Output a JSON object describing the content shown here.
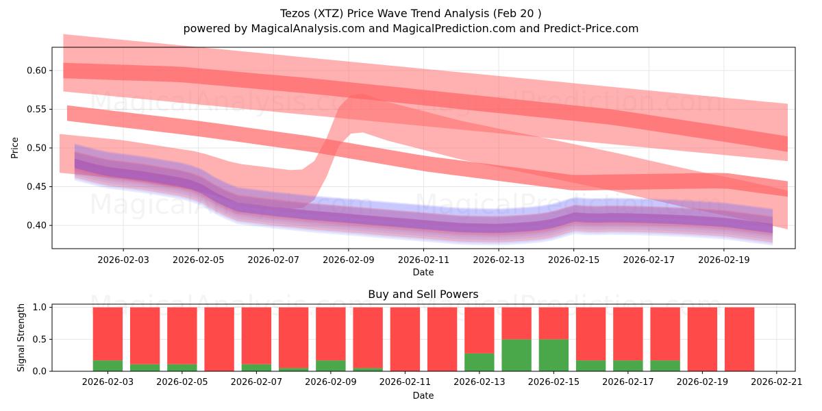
{
  "header": {
    "title": "Tezos (XTZ) Price Wave Trend Analysis (Feb 20 )",
    "subtitle": "powered by MagicalAnalysis.com and MagicalPrediction.com and Predict-Price.com"
  },
  "watermarks": [
    "MagicalAnalysis.com",
    "MagicalPrediction.com"
  ],
  "colors": {
    "sell": "#ff4a4a",
    "buy": "#4aa84a",
    "red_band": "#ff6464",
    "blue_band": "#6a6aff",
    "grid": "#e6e6e6"
  },
  "chart_data": [
    {
      "type": "area",
      "title": "",
      "xlabel": "Date",
      "ylabel": "Price",
      "xlim": [
        -1.9,
        17.9
      ],
      "ylim": [
        0.37,
        0.63
      ],
      "grid": true,
      "x_ticks": [
        {
          "x": 0,
          "label": "2026-02-03"
        },
        {
          "x": 2,
          "label": "2026-02-05"
        },
        {
          "x": 4,
          "label": "2026-02-07"
        },
        {
          "x": 6,
          "label": "2026-02-09"
        },
        {
          "x": 8,
          "label": "2026-02-11"
        },
        {
          "x": 10,
          "label": "2026-02-13"
        },
        {
          "x": 12,
          "label": "2026-02-15"
        },
        {
          "x": 14,
          "label": "2026-02-17"
        },
        {
          "x": 16,
          "label": "2026-02-19"
        }
      ],
      "y_ticks": [
        {
          "y": 0.4,
          "label": "0.40"
        },
        {
          "y": 0.45,
          "label": "0.45"
        },
        {
          "y": 0.5,
          "label": "0.50"
        },
        {
          "y": 0.55,
          "label": "0.55"
        },
        {
          "y": 0.6,
          "label": "0.60"
        }
      ],
      "red_trend_bands": [
        {
          "name": "upper trend wide",
          "x": [
            -1.6,
            17.7
          ],
          "center": [
            0.61,
            0.52
          ],
          "half_width": 0.037,
          "opacity": 0.5
        },
        {
          "name": "upper trend",
          "x": [
            -1.6,
            1.5,
            5,
            9,
            13,
            16,
            17.7
          ],
          "center": [
            0.6,
            0.595,
            0.58,
            0.56,
            0.54,
            0.518,
            0.505
          ],
          "half_width": 0.01,
          "opacity": 0.7
        },
        {
          "name": "lower trend",
          "x": [
            -1.5,
            2,
            5,
            8,
            12,
            16,
            17.7
          ],
          "center": [
            0.545,
            0.525,
            0.505,
            0.48,
            0.455,
            0.458,
            0.447
          ],
          "half_width": 0.01,
          "opacity": 0.7
        },
        {
          "name": "curved trend",
          "x": [
            -1.7,
            0,
            2,
            3,
            4.7,
            5.2,
            5.8,
            6.2,
            7,
            9,
            11,
            13,
            15,
            16.8,
            17.7
          ],
          "center": [
            0.493,
            0.485,
            0.47,
            0.455,
            0.445,
            0.462,
            0.535,
            0.548,
            0.535,
            0.51,
            0.49,
            0.47,
            0.448,
            0.43,
            0.42
          ],
          "half_width": 0.025,
          "opacity": 0.5
        }
      ],
      "price_x": [
        -1.3,
        -0.5,
        0.5,
        1.5,
        2,
        2.5,
        3,
        4,
        5,
        6,
        7,
        8,
        9,
        10,
        11,
        11.5,
        12,
        12.5,
        13,
        14,
        15,
        16,
        17.3
      ],
      "price_center": [
        0.48,
        0.47,
        0.464,
        0.456,
        0.45,
        0.435,
        0.424,
        0.418,
        0.413,
        0.409,
        0.405,
        0.401,
        0.397,
        0.396,
        0.399,
        0.403,
        0.411,
        0.409,
        0.41,
        0.409,
        0.407,
        0.404,
        0.396
      ],
      "blue_band_offsets": [
        0.014,
        0.01,
        0.006,
        0.003,
        0.0,
        -0.004,
        -0.008
      ],
      "red_wave_offsets": [
        0.008,
        0.004,
        -0.002,
        -0.006,
        -0.01
      ],
      "end_dip": {
        "x": 2.8,
        "center": 0.41
      }
    },
    {
      "type": "bar",
      "title": "Buy and Sell Powers",
      "xlabel": "Date",
      "ylabel": "Signal Strength",
      "xlim": [
        -1.5,
        18.5
      ],
      "ylim": [
        0,
        1.05
      ],
      "grid": true,
      "x_ticks": [
        {
          "x": 0,
          "label": "2026-02-03"
        },
        {
          "x": 2,
          "label": "2026-02-05"
        },
        {
          "x": 4,
          "label": "2026-02-07"
        },
        {
          "x": 6,
          "label": "2026-02-09"
        },
        {
          "x": 8,
          "label": "2026-02-11"
        },
        {
          "x": 10,
          "label": "2026-02-13"
        },
        {
          "x": 12,
          "label": "2026-02-15"
        },
        {
          "x": 14,
          "label": "2026-02-17"
        },
        {
          "x": 16,
          "label": "2026-02-19"
        },
        {
          "x": 18,
          "label": "2026-02-21"
        }
      ],
      "y_ticks": [
        {
          "y": 0.0,
          "label": "0.0"
        },
        {
          "y": 0.5,
          "label": "0.5"
        },
        {
          "y": 1.0,
          "label": "1.0"
        }
      ],
      "categories": [
        "2026-02-03",
        "2026-02-04",
        "2026-02-05",
        "2026-02-06",
        "2026-02-07",
        "2026-02-08",
        "2026-02-09",
        "2026-02-10",
        "2026-02-11",
        "2026-02-12",
        "2026-02-13",
        "2026-02-14",
        "2026-02-15",
        "2026-02-16",
        "2026-02-17",
        "2026-02-18",
        "2026-02-19",
        "2026-02-20"
      ],
      "series": [
        {
          "name": "Buy",
          "values": [
            0.17,
            0.11,
            0.11,
            0.0,
            0.11,
            0.05,
            0.17,
            0.05,
            0.0,
            0.0,
            0.28,
            0.5,
            0.5,
            0.17,
            0.17,
            0.17,
            0.0,
            0.0
          ]
        },
        {
          "name": "Sell",
          "values": [
            0.83,
            0.89,
            0.89,
            1.0,
            0.89,
            0.95,
            0.83,
            0.95,
            1.0,
            1.0,
            0.72,
            0.5,
            0.5,
            0.83,
            0.83,
            0.83,
            1.0,
            1.0
          ]
        }
      ]
    }
  ]
}
